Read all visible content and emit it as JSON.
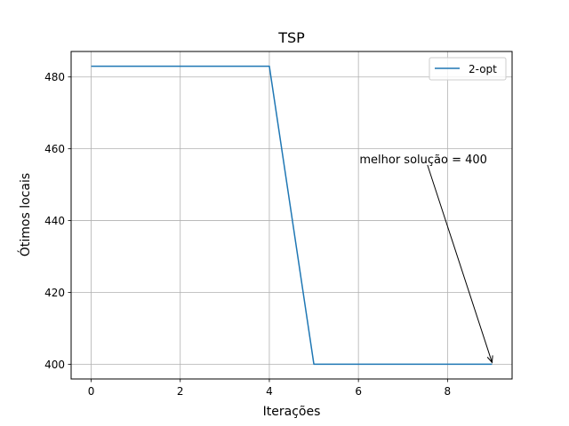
{
  "chart_data": {
    "type": "line",
    "title": "TSP",
    "xlabel": "Iterações",
    "ylabel": "Ótimos locais",
    "x": [
      0,
      1,
      2,
      3,
      4,
      5,
      6,
      7,
      8,
      9
    ],
    "series": [
      {
        "name": "2-opt",
        "color": "#1f77b4",
        "values": [
          483,
          483,
          483,
          483,
          483,
          400,
          400,
          400,
          400,
          400
        ]
      }
    ],
    "xlim": [
      -0.45,
      9.45
    ],
    "ylim": [
      395.9,
      487.1
    ],
    "xticks": [
      0,
      2,
      4,
      6,
      8
    ],
    "yticks": [
      400,
      420,
      440,
      460,
      480
    ],
    "grid": true,
    "legend": "top-right",
    "annotation": {
      "text": "melhor solução = 400",
      "text_at": [
        6,
        457
      ],
      "arrow_to": [
        9,
        400
      ]
    }
  }
}
